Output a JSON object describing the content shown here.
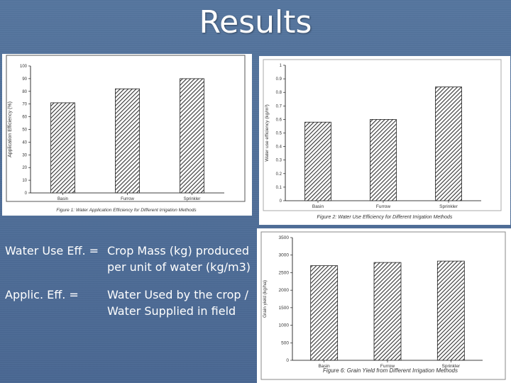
{
  "slide": {
    "title": "Results",
    "definitions": [
      {
        "term": "Water Use Eff. =",
        "desc": "Crop Mass (kg) produced per unit of water (kg/m3)"
      },
      {
        "term": "Applic. Eff. =",
        "desc": "Water Used by the crop / Water Supplied in field"
      }
    ]
  },
  "colors": {
    "background": "#4f6f9a",
    "bar_hatch": "#333333",
    "panel": "#ffffff"
  },
  "chart_data": [
    {
      "type": "bar",
      "categories": [
        "Basin",
        "Furrow",
        "Sprinkler"
      ],
      "values": [
        71,
        82,
        90
      ],
      "ylabel": "Application Efficiency (%)",
      "xlabel": "",
      "ylim": [
        0,
        100
      ],
      "yticks": [
        "0",
        "10",
        "20",
        "30",
        "40",
        "50",
        "60",
        "70",
        "80",
        "90",
        "100"
      ],
      "caption": "Figure 1: Water Application Efficiency for Different Irrigation Methods",
      "grid": false
    },
    {
      "type": "bar",
      "categories": [
        "Basin",
        "Furrow",
        "Sprinkler"
      ],
      "values": [
        0.58,
        0.6,
        0.84
      ],
      "ylabel": "Water use efficiency (kg/m³)",
      "xlabel": "",
      "ylim": [
        0,
        1
      ],
      "yticks": [
        "0",
        "0.1",
        "0.2",
        "0.3",
        "0.4",
        "0.5",
        "0.6",
        "0.7",
        "0.8",
        "0.9",
        "1"
      ],
      "caption": "Figure 2: Water Use Efficiency for Different Irrigation Methods",
      "grid": false
    },
    {
      "type": "bar",
      "categories": [
        "Basin",
        "Furrow",
        "Sprinkler"
      ],
      "values": [
        2700,
        2790,
        2830
      ],
      "ylabel": "Grain yield (kg/ha)",
      "xlabel": "",
      "ylim": [
        0,
        3500
      ],
      "yticks": [
        "0",
        "500",
        "1000",
        "1500",
        "2000",
        "2500",
        "3000",
        "3500"
      ],
      "caption": "Figure 6: Grain Yield from Different Irrigation Methods",
      "grid": false
    }
  ]
}
